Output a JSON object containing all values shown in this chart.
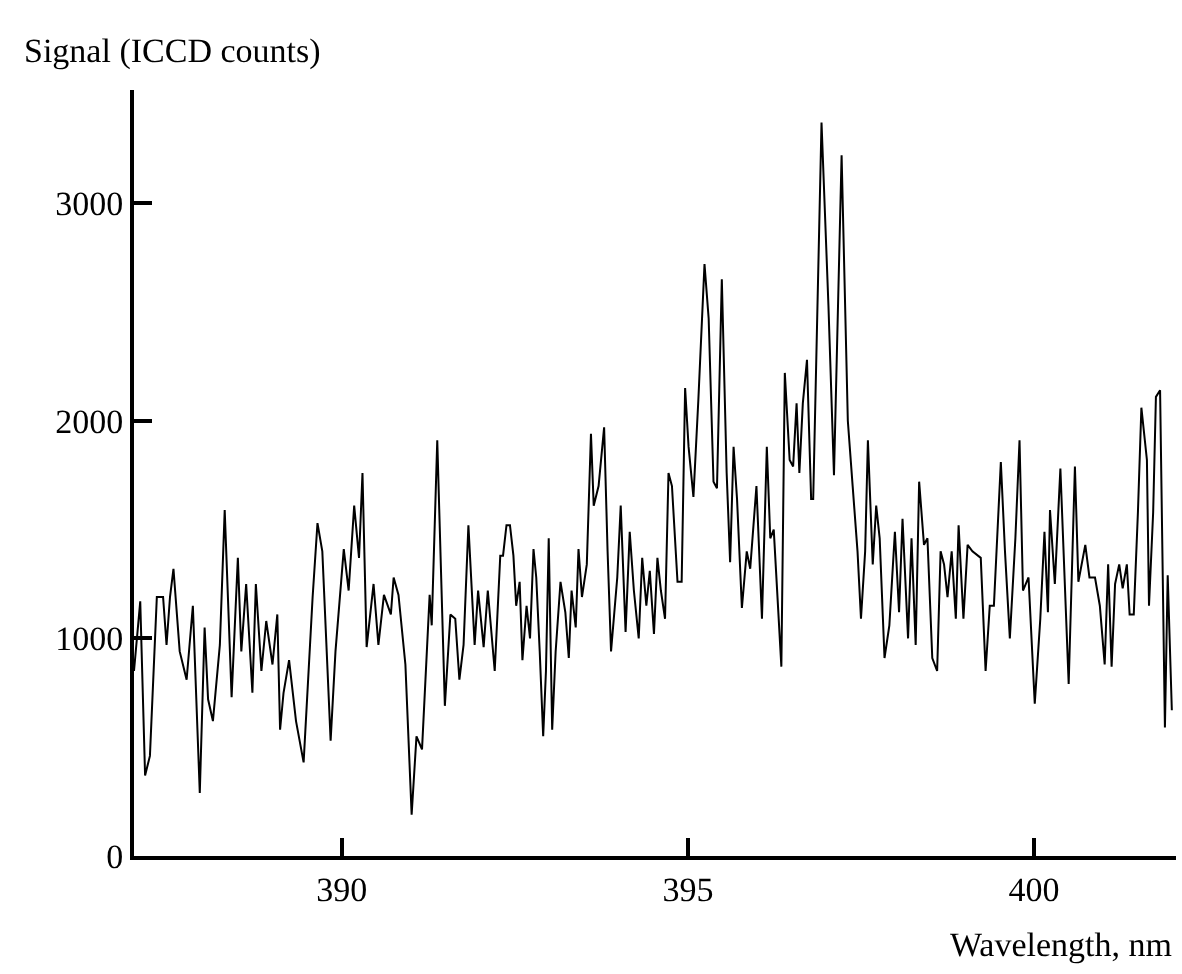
{
  "chart_data": {
    "type": "line",
    "xlabel": "Wavelength, nm",
    "ylabel": "Signal (ICCD counts)",
    "xlim": [
      387.0,
      402.05
    ],
    "ylim": [
      0,
      3520
    ],
    "xticks": [
      390,
      395,
      400
    ],
    "yticks": [
      0,
      1000,
      2000,
      3000
    ],
    "marker": "none",
    "line_style": "solid",
    "x": [
      387.0,
      387.09,
      387.16,
      387.23,
      387.33,
      387.42,
      387.47,
      387.52,
      387.57,
      387.66,
      387.76,
      387.85,
      387.95,
      388.02,
      388.07,
      388.14,
      388.24,
      388.31,
      388.41,
      388.5,
      388.55,
      388.62,
      388.71,
      388.76,
      388.84,
      388.91,
      389.0,
      389.07,
      389.11,
      389.16,
      389.24,
      389.34,
      389.45,
      389.58,
      389.65,
      389.72,
      389.84,
      389.91,
      390.03,
      390.1,
      390.18,
      390.25,
      390.3,
      390.36,
      390.46,
      390.53,
      390.61,
      390.71,
      390.75,
      390.82,
      390.92,
      391.01,
      391.08,
      391.16,
      391.27,
      391.3,
      391.38,
      391.49,
      391.57,
      391.64,
      391.7,
      391.76,
      391.83,
      391.92,
      391.97,
      392.05,
      392.11,
      392.21,
      392.29,
      392.33,
      392.38,
      392.43,
      392.48,
      392.52,
      392.57,
      392.61,
      392.67,
      392.72,
      392.77,
      392.81,
      392.86,
      392.91,
      392.95,
      392.99,
      393.04,
      393.09,
      393.16,
      393.23,
      393.28,
      393.32,
      393.38,
      393.42,
      393.47,
      393.54,
      393.6,
      393.64,
      393.71,
      393.79,
      393.84,
      393.89,
      393.98,
      394.03,
      394.1,
      394.16,
      394.22,
      394.29,
      394.34,
      394.4,
      394.45,
      394.51,
      394.56,
      394.61,
      394.67,
      394.72,
      394.77,
      394.85,
      394.91,
      394.96,
      395.01,
      395.08,
      395.15,
      395.24,
      395.3,
      395.37,
      395.42,
      395.49,
      395.56,
      395.61,
      395.66,
      395.71,
      395.78,
      395.85,
      395.9,
      395.99,
      396.07,
      396.14,
      396.19,
      396.24,
      396.35,
      396.4,
      396.47,
      396.52,
      396.57,
      396.61,
      396.66,
      396.72,
      396.78,
      396.81,
      396.93,
      397.03,
      397.11,
      397.22,
      397.31,
      397.38,
      397.45,
      397.5,
      397.56,
      397.6,
      397.67,
      397.72,
      397.77,
      397.84,
      397.91,
      397.99,
      398.05,
      398.1,
      398.18,
      398.23,
      398.29,
      398.34,
      398.41,
      398.46,
      398.53,
      398.6,
      398.65,
      398.7,
      398.75,
      398.81,
      398.87,
      398.91,
      398.98,
      399.04,
      399.11,
      399.23,
      399.3,
      399.36,
      399.42,
      399.52,
      399.58,
      399.65,
      399.73,
      399.79,
      399.84,
      399.92,
      400.01,
      400.09,
      400.15,
      400.2,
      400.23,
      400.3,
      400.38,
      400.5,
      400.59,
      400.64,
      400.74,
      400.8,
      400.88,
      400.95,
      401.02,
      401.07,
      401.12,
      401.17,
      401.23,
      401.28,
      401.34,
      401.38,
      401.44,
      401.5,
      401.55,
      401.63,
      401.66,
      401.72,
      401.76,
      401.82,
      401.89,
      401.93,
      401.99
    ],
    "series": [
      {
        "color": "#000000",
        "values": [
          850,
          1170,
          370,
          460,
          1190,
          1190,
          970,
          1190,
          1320,
          940,
          810,
          1150,
          290,
          1050,
          720,
          620,
          970,
          1590,
          730,
          1370,
          940,
          1250,
          750,
          1250,
          850,
          1080,
          880,
          1110,
          580,
          750,
          900,
          620,
          430,
          1190,
          1530,
          1400,
          530,
          940,
          1410,
          1220,
          1610,
          1370,
          1760,
          960,
          1250,
          970,
          1200,
          1110,
          1280,
          1200,
          880,
          190,
          550,
          490,
          1200,
          1060,
          1910,
          690,
          1110,
          1090,
          810,
          970,
          1520,
          970,
          1220,
          960,
          1220,
          850,
          1380,
          1380,
          1520,
          1520,
          1380,
          1150,
          1260,
          900,
          1150,
          1000,
          1410,
          1280,
          940,
          550,
          850,
          1460,
          580,
          940,
          1260,
          1120,
          910,
          1220,
          1050,
          1410,
          1190,
          1340,
          1940,
          1610,
          1700,
          1970,
          1400,
          940,
          1280,
          1610,
          1030,
          1490,
          1220,
          1000,
          1370,
          1150,
          1310,
          1020,
          1370,
          1220,
          1090,
          1760,
          1700,
          1260,
          1260,
          2150,
          1880,
          1650,
          2090,
          2720,
          2470,
          1720,
          1690,
          2650,
          1760,
          1350,
          1880,
          1640,
          1140,
          1400,
          1320,
          1700,
          1090,
          1880,
          1460,
          1500,
          870,
          2220,
          1820,
          1790,
          2080,
          1760,
          2080,
          2280,
          1640,
          1640,
          3370,
          2530,
          1750,
          3220,
          2000,
          1700,
          1400,
          1090,
          1400,
          1910,
          1340,
          1610,
          1460,
          910,
          1060,
          1490,
          1120,
          1550,
          1000,
          1460,
          970,
          1720,
          1430,
          1460,
          910,
          850,
          1400,
          1340,
          1190,
          1400,
          1090,
          1520,
          1090,
          1430,
          1400,
          1370,
          850,
          1150,
          1150,
          1810,
          1400,
          1000,
          1460,
          1910,
          1220,
          1280,
          700,
          1090,
          1490,
          1120,
          1590,
          1250,
          1780,
          790,
          1790,
          1260,
          1430,
          1280,
          1280,
          1150,
          880,
          1340,
          870,
          1250,
          1340,
          1230,
          1340,
          1110,
          1110,
          1580,
          2060,
          1820,
          1150,
          1580,
          2110,
          2140,
          590,
          1290,
          670
        ]
      }
    ]
  }
}
